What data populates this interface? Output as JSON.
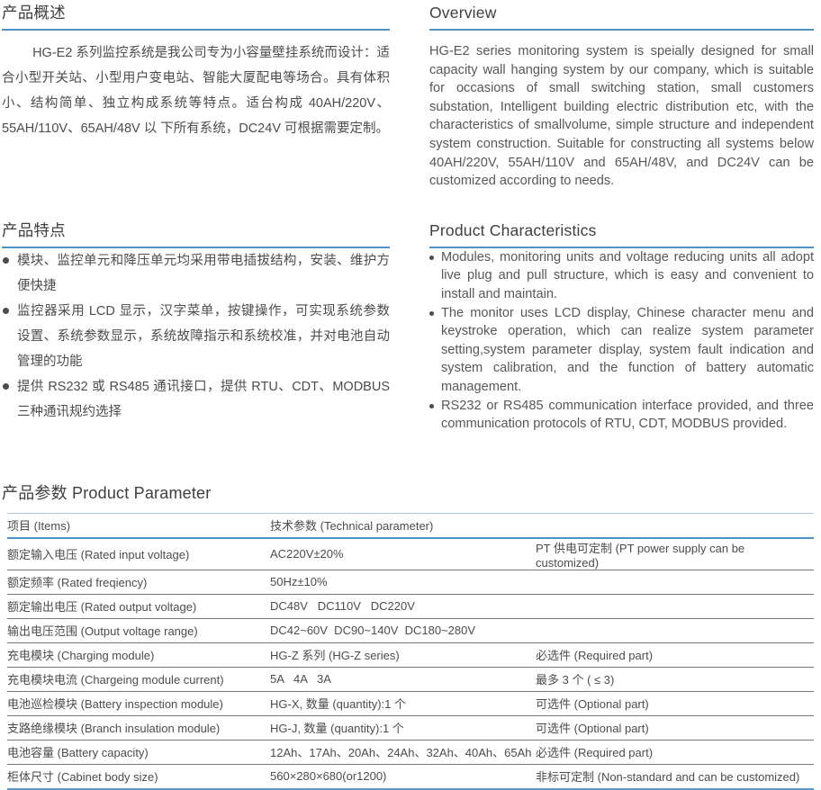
{
  "colors": {
    "accent_blue": "#4e93c8",
    "light_blue_border": "#a9c9e3",
    "table_gray_border": "#77787a",
    "title_text": "#3c3e41",
    "body_text": "#4a4c4e"
  },
  "overview_cn": {
    "title": "产品概述",
    "body": "HG-E2 系列监控系统是我公司专为小容量壁挂系统而设计：适合小型开关站、小型用户变电站、智能大厦配电等场合。具有体积小、结构简单、独立构成系统等特点。适台构成 40AH/220V、55AH/110V、65AH/48V 以 下所有系统，DC24V 可根据需要定制。"
  },
  "overview_en": {
    "title": "Overview",
    "body": "HG-E2 series monitoring system is speially designed for small capacity wall hanging system by our company, which is suitable for occasions of small switching station, small customers substation, Intelligent building electric distribution etc, with the characteristics of smallvolume, simple structure and independent system construction. Suitable for constructing all systems below 40AH/220V, 55AH/110V and 65AH/48V, and DC24V can be customized according to needs."
  },
  "features_cn": {
    "title": "产品特点",
    "bullets": [
      "模块、监控单元和降压单元均采用带电插拔结构，安装、维护方便快捷",
      "监控器采用 LCD 显示，汉字菜单，按键操作，可实现系统参数设置、系统参数显示，系统故障指示和系统校准，并对电池自动管理的功能",
      "提供 RS232 或 RS485 通讯接口，提供 RTU、CDT、MODBUS 三种通讯规约选择"
    ]
  },
  "features_en": {
    "title": "Product Characteristics",
    "bullets": [
      "Modules, monitoring units and voltage reducing units all adopt live plug and pull structure, which is easy and convenient to install and maintain.",
      "The monitor uses LCD display, Chinese character menu and keystroke operation, which can realize system parameter setting,system parameter display, system fault indication and system calibration, and the function of battery automatic management.",
      "RS232 or RS485 communication interface provided, and three communication protocols of RTU, CDT, MODBUS provided."
    ]
  },
  "parameters": {
    "title": "产品参数 Product Parameter",
    "columns": [
      "项目 (Items)",
      "技术参数 (Technical parameter)",
      ""
    ],
    "rows": [
      [
        "额定输入电压 (Rated input voltage)",
        "AC220V±20%",
        "PT 供电可定制 (PT power supply can be customized)"
      ],
      [
        "额定频率 (Rated freqiency)",
        "50Hz±10%",
        ""
      ],
      [
        "额定输出电压 (Rated output voltage)",
        "DC48V   DC110V   DC220V",
        ""
      ],
      [
        "输出电压范围 (Output voltage range)",
        "DC42~60V  DC90~140V  DC180~280V",
        ""
      ],
      [
        "充电模块 (Charging module)",
        "HG-Z 系列 (HG-Z series)",
        "必选件 (Required part)"
      ],
      [
        "充电模块电流 (Chargeing module current)",
        "5A   4A   3A",
        "最多 3 个 ( ≤ 3)"
      ],
      [
        "电池巡检模块 (Battery inspection module)",
        "HG-X, 数量 (quantity):1 个",
        "可选件 (Optional part)"
      ],
      [
        "支路绝缘模块 (Branch insulation module)",
        "HG-J, 数量 (quantity):1 个",
        "可选件 (Optional part)"
      ],
      [
        "电池容量 (Battery capacity)",
        "12Ah、17Ah、20Ah、24Ah、32Ah、40Ah、65Ah",
        "必选件 (Required part)"
      ],
      [
        "柜体尺寸 (Cabinet body size)",
        "560×280×680(or1200)",
        "非标可定制 (Non-standard and can be customized)"
      ]
    ]
  }
}
